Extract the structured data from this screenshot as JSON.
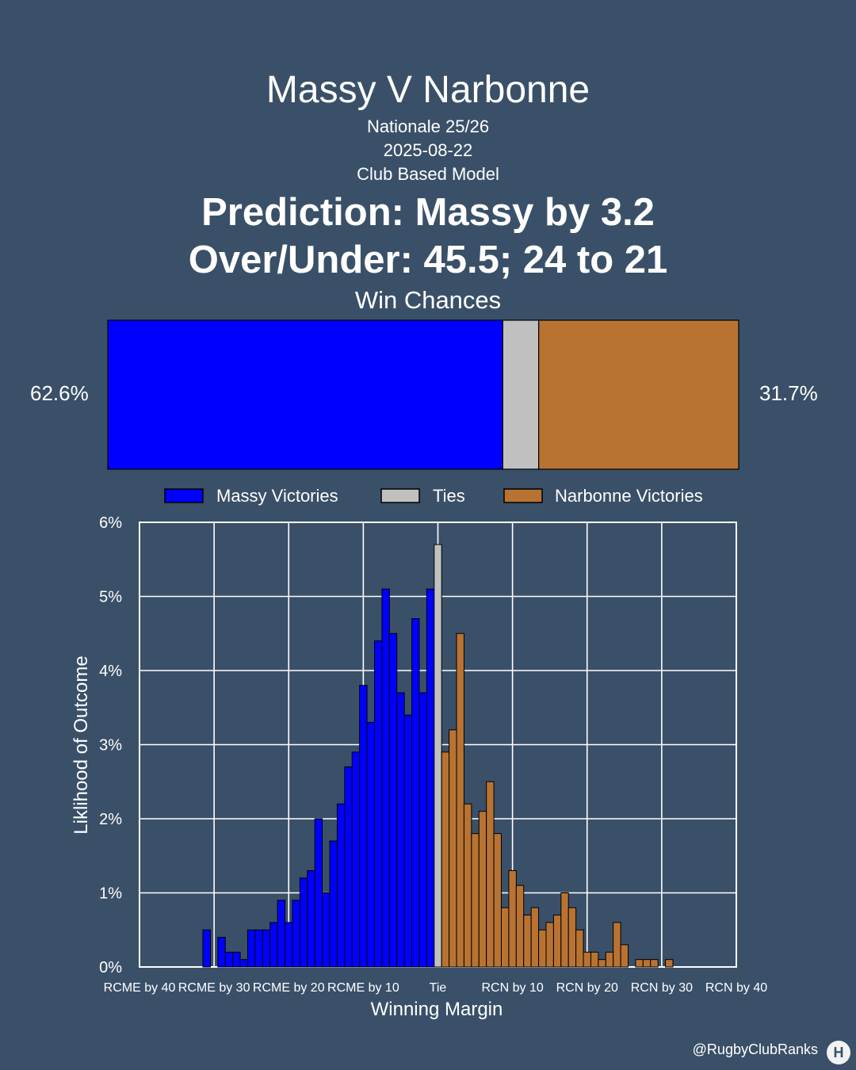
{
  "header": {
    "title": "Massy V Narbonne",
    "competition": "Nationale 25/26",
    "date": "2025-08-22",
    "model": "Club Based Model",
    "prediction": "Prediction: Massy by 3.2",
    "over_under": "Over/Under: 45.5; 24 to 21"
  },
  "win_chances": {
    "title": "Win Chances",
    "home_pct_label": "62.6%",
    "away_pct_label": "31.7%",
    "home_share": 62.6,
    "tie_share": 5.7,
    "away_share": 31.7
  },
  "legend": {
    "home": "Massy Victories",
    "tie": "Ties",
    "away": "Narbonne Victories"
  },
  "colors": {
    "background": "#3a5068",
    "home": "#0000ff",
    "tie": "#c0c0c0",
    "away": "#b87333"
  },
  "chart_data": {
    "type": "bar",
    "xlabel": "Winning Margin",
    "ylabel": "Liklihood of Outcome",
    "xlim": [
      -40,
      40
    ],
    "ylim": [
      0,
      6
    ],
    "y_ticks": [
      "0%",
      "1%",
      "2%",
      "3%",
      "4%",
      "5%",
      "6%"
    ],
    "x_ticks": [
      {
        "value": -40,
        "label": "RCME by 40"
      },
      {
        "value": -30,
        "label": "RCME by 30"
      },
      {
        "value": -20,
        "label": "RCME by 20"
      },
      {
        "value": -10,
        "label": "RCME by 10"
      },
      {
        "value": 0,
        "label": "Tie"
      },
      {
        "value": 10,
        "label": "RCN by 10"
      },
      {
        "value": 20,
        "label": "RCN by 20"
      },
      {
        "value": 30,
        "label": "RCN by 30"
      },
      {
        "value": 40,
        "label": "RCN by 40"
      }
    ],
    "grid": true,
    "legend_position": "top",
    "series": [
      {
        "name": "Massy Victories",
        "x": [
          -31,
          -30,
          -29,
          -28,
          -27,
          -26,
          -25,
          -24,
          -23,
          -22,
          -21,
          -20,
          -19,
          -18,
          -17,
          -16,
          -15,
          -14,
          -13,
          -12,
          -11,
          -10,
          -9,
          -8,
          -7,
          -6,
          -5,
          -4,
          -3,
          -2,
          -1
        ],
        "values": [
          0.5,
          0,
          0.4,
          0.2,
          0.2,
          0.1,
          0.5,
          0.5,
          0.5,
          0.6,
          0.9,
          0.6,
          0.9,
          1.2,
          1.3,
          2.0,
          1.0,
          1.7,
          2.2,
          2.7,
          2.9,
          3.8,
          3.3,
          4.4,
          5.1,
          4.5,
          3.7,
          3.4,
          4.7,
          3.7,
          5.1
        ]
      },
      {
        "name": "Ties",
        "x": [
          0
        ],
        "values": [
          5.7
        ]
      },
      {
        "name": "Narbonne Victories",
        "x": [
          1,
          2,
          3,
          4,
          5,
          6,
          7,
          8,
          9,
          10,
          11,
          12,
          13,
          14,
          15,
          16,
          17,
          18,
          19,
          20,
          21,
          22,
          23,
          24,
          25,
          26,
          27,
          28,
          29,
          30,
          31,
          32,
          33
        ],
        "values": [
          2.9,
          3.2,
          4.5,
          2.2,
          1.8,
          2.1,
          2.5,
          1.8,
          0.8,
          1.3,
          1.1,
          0.7,
          0.8,
          0.5,
          0.6,
          0.7,
          1.0,
          0.8,
          0.5,
          0.2,
          0.2,
          0.1,
          0.2,
          0.6,
          0.3,
          0,
          0.1,
          0.1,
          0.1,
          0,
          0.1,
          0,
          0
        ]
      }
    ]
  },
  "footer": {
    "handle": "@RugbyClubRanks",
    "logo_mark": "H"
  }
}
